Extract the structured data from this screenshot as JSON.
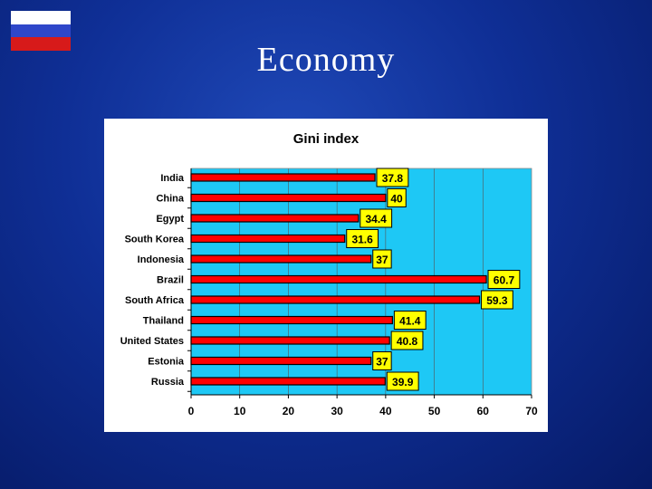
{
  "slide": {
    "title": "Economy",
    "flag_colors": [
      "#ffffff",
      "#2f47c9",
      "#d71a1a"
    ]
  },
  "chart_data": {
    "type": "bar",
    "orientation": "horizontal",
    "title": "Gini index",
    "categories": [
      "India",
      "China",
      "Egypt",
      "South Korea",
      "Indonesia",
      "Brazil",
      "South Africa",
      "Thailand",
      "United States",
      "Estonia",
      "Russia"
    ],
    "values": [
      37.8,
      40,
      34.4,
      31.6,
      37,
      60.7,
      59.3,
      41.4,
      40.8,
      37,
      39.9
    ],
    "data_labels": [
      "37.8",
      "40",
      "34.4",
      "31.6",
      "37",
      "60.7",
      "59.3",
      "41.4",
      "40.8",
      "37",
      "39.9"
    ],
    "xlim": [
      0,
      70
    ],
    "x_ticks": [
      "0",
      "10",
      "20",
      "30",
      "40",
      "50",
      "60",
      "70"
    ],
    "grid": true,
    "colors": {
      "bar": "#ff0000",
      "plot_background": "#1ec8f5",
      "data_label_background": "#ffff00"
    }
  }
}
